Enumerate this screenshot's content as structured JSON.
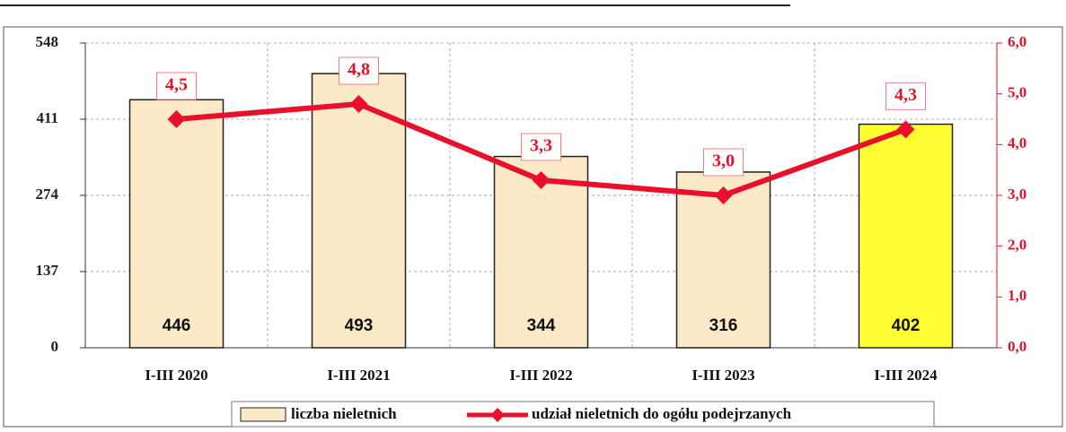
{
  "chart_data": {
    "type": "bar_line",
    "categories": [
      "I-III 2020",
      "I-III 2021",
      "I-III 2022",
      "I-III 2023",
      "I-III 2024"
    ],
    "series": [
      {
        "name": "liczba nieletnich",
        "type": "bar",
        "color": "#fbe9c8",
        "colors": [
          "#fbe9c8",
          "#fbe9c8",
          "#fbe9c8",
          "#fbe9c8",
          "#ffff33"
        ],
        "values": [
          446,
          493,
          344,
          316,
          402
        ]
      },
      {
        "name": "udział nieletnich do ogółu podejrzanych",
        "type": "line",
        "axis": "y2",
        "color": "#e8102a",
        "values": [
          4.5,
          4.8,
          3.3,
          3.0,
          4.3
        ],
        "value_labels": [
          "4,5",
          "4,8",
          "3,3",
          "3,0",
          "4,3"
        ]
      }
    ],
    "ylim": [
      0,
      548
    ],
    "yticks": [
      0,
      137,
      274,
      411,
      548
    ],
    "y2lim": [
      0,
      6
    ],
    "y2ticks": [
      {
        "value": 0,
        "label": "0,0"
      },
      {
        "value": 1,
        "label": "1,0"
      },
      {
        "value": 2,
        "label": "2,0"
      },
      {
        "value": 3,
        "label": "3,0"
      },
      {
        "value": 4,
        "label": "4,0"
      },
      {
        "value": 5,
        "label": "5,0"
      },
      {
        "value": 6,
        "label": "6,0"
      }
    ],
    "grid": true,
    "legend": "bottom"
  }
}
